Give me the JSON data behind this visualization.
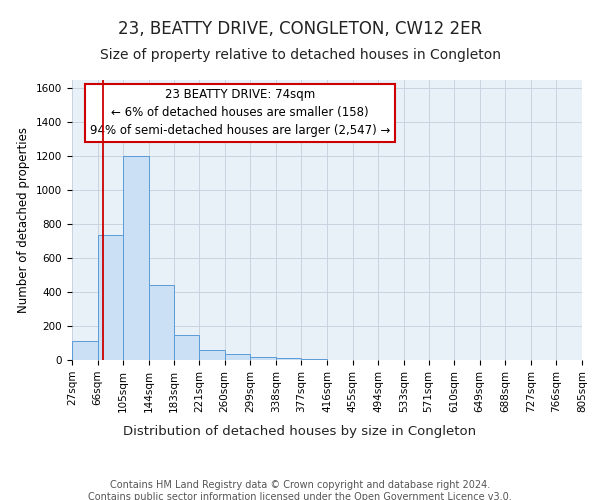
{
  "title": "23, BEATTY DRIVE, CONGLETON, CW12 2ER",
  "subtitle": "Size of property relative to detached houses in Congleton",
  "xlabel": "Distribution of detached houses by size in Congleton",
  "ylabel": "Number of detached properties",
  "bin_edges": [
    27,
    66,
    105,
    144,
    183,
    221,
    260,
    299,
    338,
    377,
    416,
    455,
    494,
    533,
    571,
    610,
    649,
    688,
    727,
    766,
    805
  ],
  "bar_heights": [
    110,
    735,
    1200,
    440,
    145,
    60,
    35,
    15,
    10,
    5,
    0,
    0,
    0,
    0,
    0,
    0,
    0,
    0,
    0,
    0
  ],
  "bar_color": "#cce0f5",
  "bar_edgecolor": "#5b9bd5",
  "red_line_x": 74,
  "red_line_color": "#cc0000",
  "annotation_title": "23 BEATTY DRIVE: 74sqm",
  "annotation_line1": "← 6% of detached houses are smaller (158)",
  "annotation_line2": "94% of semi-detached houses are larger (2,547) →",
  "annotation_box_edgecolor": "#cc0000",
  "annotation_box_facecolor": "#ffffff",
  "ylim": [
    0,
    1650
  ],
  "yticks": [
    0,
    200,
    400,
    600,
    800,
    1000,
    1200,
    1400,
    1600
  ],
  "footer_line1": "Contains HM Land Registry data © Crown copyright and database right 2024.",
  "footer_line2": "Contains public sector information licensed under the Open Government Licence v3.0.",
  "plot_background": "#e8f0f8",
  "grid_color": "#c8d4e0",
  "title_fontsize": 12,
  "subtitle_fontsize": 10,
  "xlabel_fontsize": 9.5,
  "ylabel_fontsize": 8.5,
  "tick_fontsize": 7.5,
  "annotation_fontsize": 8.5,
  "footer_fontsize": 7
}
